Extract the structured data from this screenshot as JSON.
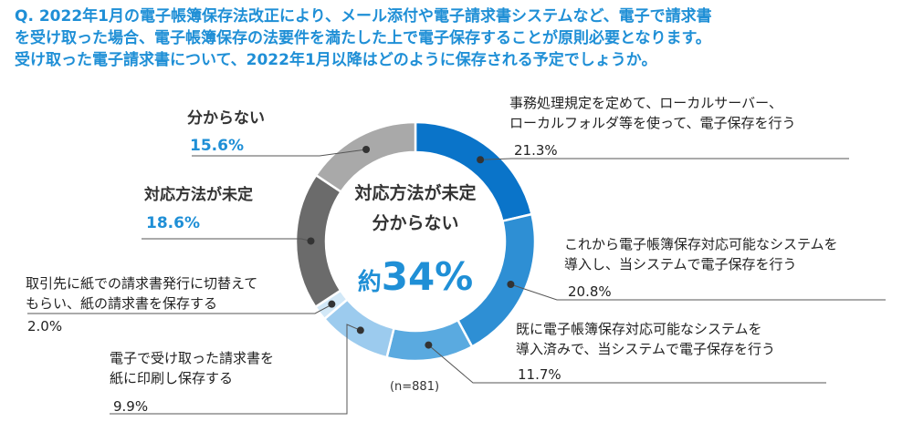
{
  "question": {
    "line1": "Q. 2022年1月の電子帳簿保存法改正により、メール添付や電子請求書システムなど、電子で請求書",
    "line2": "を受け取った場合、電子帳簿保存の法要件を満たした上で電子保存することが原則必要となります。",
    "line3": "受け取った電子請求書について、2022年1月以降はどのように保存される予定でしょうか。"
  },
  "center": {
    "line1": "対応方法が未定",
    "line2": "分からない",
    "prefix": "約",
    "value": "34%"
  },
  "note": "(n=881)",
  "chart_data": {
    "type": "pie",
    "donut": true,
    "start": "12 o'clock, clockwise",
    "slices": [
      {
        "label_lines": [
          "事務処理規定を定めて、ローカルサーバー、",
          "ローカルフォルダ等を使って、電子保存を行う"
        ],
        "pct_text": "21.3%",
        "value": 21.3,
        "color": "#0a74c9",
        "style": "normal"
      },
      {
        "label_lines": [
          "これから電子帳簿保存対応可能なシステムを",
          "導入し、当システムで電子保存を行う"
        ],
        "pct_text": "20.8%",
        "value": 20.8,
        "color": "#2e8fd4",
        "style": "normal"
      },
      {
        "label_lines": [
          "既に電子帳簿保存対応可能なシステムを",
          "導入済みで、当システムで電子保存を行う"
        ],
        "pct_text": "11.7%",
        "value": 11.7,
        "color": "#5aaae0",
        "style": "normal"
      },
      {
        "label_lines": [
          "電子で受け取った請求書を",
          "紙に印刷し保存する"
        ],
        "pct_text": "9.9%",
        "value": 9.9,
        "color": "#9ccbee",
        "style": "normal"
      },
      {
        "label_lines": [
          "取引先に紙での請求書発行に切替えて",
          "もらい、紙の請求書を保存する"
        ],
        "pct_text": "2.0%",
        "value": 2.0,
        "color": "#d2e8f7",
        "style": "normal"
      },
      {
        "label_lines": [
          "対応方法が未定"
        ],
        "pct_text": "18.6%",
        "value": 18.6,
        "color": "#6b6b6b",
        "style": "bold"
      },
      {
        "label_lines": [
          "分からない"
        ],
        "pct_text": "15.6%",
        "value": 15.6,
        "color": "#a9a9a9",
        "style": "bold"
      }
    ]
  }
}
